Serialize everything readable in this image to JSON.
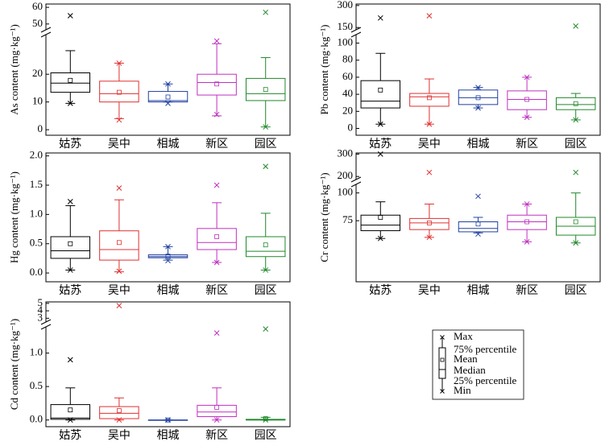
{
  "chart_data": [
    {
      "type": "box",
      "ylabel": "As content (mg·kg⁻¹)",
      "categories": [
        "姑苏",
        "吴中",
        "相城",
        "新区",
        "园区"
      ],
      "colors": [
        "#000000",
        "#e03030",
        "#2040a0",
        "#c030c0",
        "#20882a"
      ],
      "ylim": [
        -2,
        34
      ],
      "yticks": [
        0,
        10,
        20
      ],
      "ylim_upper": [
        47,
        62
      ],
      "yticks_upper": [
        50,
        60
      ],
      "stats": {
        "whisker_low": [
          9.5,
          4,
          10,
          5,
          1
        ],
        "q1": [
          13.5,
          10,
          10,
          12.5,
          10.5
        ],
        "median": [
          16.8,
          13,
          10.5,
          17,
          13
        ],
        "q3": [
          20.5,
          17.5,
          13.8,
          20,
          18.5
        ],
        "whisker_high": [
          28.5,
          24,
          16.5,
          31,
          26
        ],
        "mean": [
          17.8,
          13.5,
          11.8,
          16.5,
          14.5
        ],
        "max": [
          55,
          24,
          16.5,
          32,
          57
        ],
        "min": [
          9.5,
          3.5,
          9.5,
          5.5,
          1
        ]
      }
    },
    {
      "type": "box",
      "ylabel": "Pb content (mg·kg⁻¹)",
      "categories": [
        "姑苏",
        "吴中",
        "相城",
        "新区",
        "园区"
      ],
      "colors": [
        "#000000",
        "#e03030",
        "#2040a0",
        "#c030c0",
        "#20882a"
      ],
      "ylim": [
        -8,
        109
      ],
      "yticks": [
        0,
        20,
        40,
        60,
        80,
        100
      ],
      "ylim_upper": [
        140,
        310
      ],
      "yticks_upper": [
        150,
        300
      ],
      "stats": {
        "whisker_low": [
          5,
          5,
          24,
          13,
          10
        ],
        "q1": [
          24,
          26,
          28,
          22,
          22
        ],
        "median": [
          32,
          37,
          36,
          34,
          28
        ],
        "q3": [
          56,
          41,
          45,
          44,
          36
        ],
        "whisker_high": [
          88,
          58,
          48,
          60,
          41
        ],
        "mean": [
          45,
          36,
          36,
          34,
          29
        ],
        "max": [
          215,
          230,
          48,
          60,
          160
        ],
        "min": [
          5,
          5,
          24,
          13,
          10
        ]
      }
    },
    {
      "type": "box",
      "ylabel": "Hg content (mg·kg⁻¹)",
      "categories": [
        "姑苏",
        "吴中",
        "相城",
        "新区",
        "园区"
      ],
      "colors": [
        "#000000",
        "#e03030",
        "#2040a0",
        "#c030c0",
        "#20882a"
      ],
      "ylim": [
        -0.15,
        2.05
      ],
      "yticks": [
        {
          "value": 0,
          "label": "0.0"
        },
        {
          "value": 0.5,
          "label": "0.5"
        },
        {
          "value": 1,
          "label": "1.0"
        },
        {
          "value": 1.5,
          "label": "1.5"
        },
        {
          "value": 2,
          "label": "2.0"
        }
      ],
      "stats": {
        "whisker_low": [
          0.05,
          0.02,
          0.22,
          0.18,
          0.05
        ],
        "q1": [
          0.25,
          0.22,
          0.26,
          0.4,
          0.28
        ],
        "median": [
          0.38,
          0.4,
          0.28,
          0.52,
          0.37
        ],
        "q3": [
          0.62,
          0.72,
          0.31,
          0.76,
          0.62
        ],
        "whisker_high": [
          1.15,
          1.25,
          0.45,
          1.2,
          1.02
        ],
        "mean": [
          0.5,
          0.52,
          0.29,
          0.62,
          0.48
        ],
        "max": [
          1.22,
          1.45,
          0.45,
          1.5,
          1.82
        ],
        "min": [
          0.05,
          0.03,
          0.21,
          0.18,
          0.05
        ]
      }
    },
    {
      "type": "box",
      "ylabel": "Cr content (mg·kg⁻¹)",
      "categories": [
        "姑苏",
        "吴中",
        "相城",
        "新区",
        "园区"
      ],
      "colors": [
        "#000000",
        "#e03030",
        "#2040a0",
        "#c030c0",
        "#20882a"
      ],
      "ylim": [
        20,
        107
      ],
      "yticks": [
        75,
        100
      ],
      "ylim_upper": [
        190,
        305
      ],
      "yticks_upper": [
        200,
        300
      ],
      "stats": {
        "whisker_low": [
          59,
          60,
          64,
          56,
          55
        ],
        "q1": [
          66,
          67,
          65,
          67,
          62
        ],
        "median": [
          71,
          73,
          68,
          74,
          70
        ],
        "q3": [
          80,
          77,
          74,
          80,
          78
        ],
        "whisker_high": [
          92,
          90,
          78,
          90,
          100
        ],
        "mean": [
          78,
          73,
          72,
          74,
          74
        ],
        "max": [
          300,
          218,
          97,
          90,
          218
        ],
        "min": [
          59,
          60,
          63,
          56,
          55
        ]
      }
    },
    {
      "type": "box",
      "ylabel": "Cd content (mg·kg⁻¹)",
      "categories": [
        "姑苏",
        "吴中",
        "相城",
        "新区",
        "园区"
      ],
      "colors": [
        "#000000",
        "#e03030",
        "#2040a0",
        "#c030c0",
        "#20882a"
      ],
      "ylim": [
        -0.1,
        1.38
      ],
      "yticks": [
        {
          "value": 0,
          "label": "0.0"
        },
        {
          "value": 0.5,
          "label": "0.5"
        },
        {
          "value": 1,
          "label": "1.0"
        }
      ],
      "ylim_upper": [
        2.6,
        5.2
      ],
      "yticks_upper": [
        3,
        4,
        5
      ],
      "stats": {
        "whisker_low": [
          0,
          0,
          0,
          0,
          0
        ],
        "q1": [
          0.01,
          0.02,
          0,
          0.05,
          0
        ],
        "median": [
          0.03,
          0.1,
          0,
          0.12,
          0
        ],
        "q3": [
          0.23,
          0.2,
          0,
          0.22,
          0.01
        ],
        "whisker_high": [
          0.48,
          0.33,
          0,
          0.48,
          0.04
        ],
        "mean": [
          0.15,
          0.14,
          0,
          0.19,
          0.02
        ],
        "max": [
          0.9,
          4.7,
          0,
          1.3,
          1.36
        ],
        "min": [
          0,
          0,
          0,
          0,
          0
        ]
      }
    }
  ],
  "legend": {
    "items": [
      "Max",
      "75% percentile",
      "Mean",
      "Median",
      "25% percentile",
      "Min"
    ]
  }
}
